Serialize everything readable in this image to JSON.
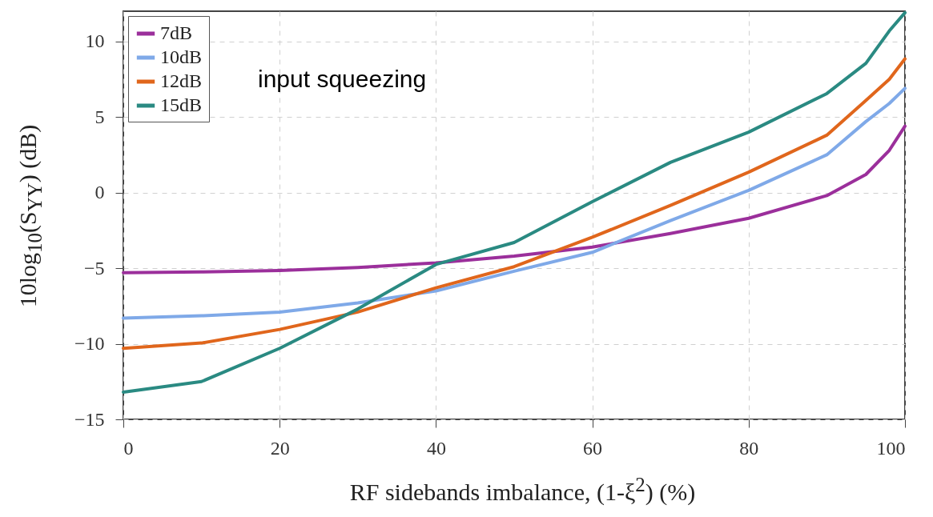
{
  "chart_data": {
    "type": "line",
    "xlabel": "RF sidebands imbalance, (1-ξ$^{2}$) (%)",
    "ylabel": "10log$_{10}$(S$_{YY}$) (dB)",
    "annotations": [
      "input squeezing"
    ],
    "x": [
      0,
      10,
      20,
      30,
      40,
      50,
      60,
      70,
      80,
      90,
      95,
      98,
      100
    ],
    "series": [
      {
        "name": "7dB",
        "color": "#9b2f9b",
        "values": [
          -5.3,
          -5.25,
          -5.15,
          -4.95,
          -4.65,
          -4.2,
          -3.6,
          -2.7,
          -1.7,
          -0.2,
          1.2,
          2.8,
          4.4
        ]
      },
      {
        "name": "10dB",
        "color": "#7fa9e8",
        "values": [
          -8.3,
          -8.15,
          -7.9,
          -7.3,
          -6.5,
          -5.2,
          -3.95,
          -1.85,
          0.15,
          2.5,
          4.7,
          5.9,
          6.9
        ]
      },
      {
        "name": "12dB",
        "color": "#e0661c",
        "values": [
          -10.3,
          -9.95,
          -9.05,
          -7.9,
          -6.3,
          -4.9,
          -2.95,
          -0.85,
          1.35,
          3.8,
          6.1,
          7.5,
          8.85
        ]
      },
      {
        "name": "15dB",
        "color": "#2a8a82",
        "values": [
          -13.2,
          -12.5,
          -10.3,
          -7.7,
          -4.75,
          -3.3,
          -0.6,
          2.0,
          4.0,
          6.55,
          8.55,
          10.7,
          11.9
        ]
      }
    ],
    "xlim": [
      0,
      100
    ],
    "xticks": [
      0,
      20,
      40,
      60,
      80,
      100
    ],
    "ylim": [
      -15,
      12
    ],
    "yticks": [
      -15,
      -10,
      -5,
      0,
      5,
      10
    ],
    "grid": true,
    "legend": "top left"
  }
}
